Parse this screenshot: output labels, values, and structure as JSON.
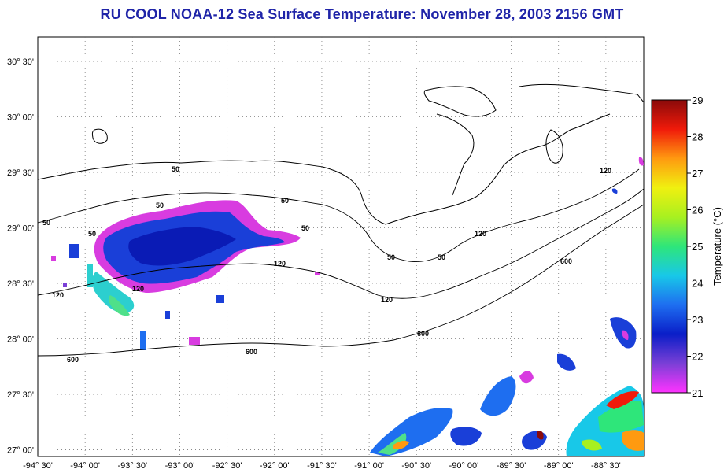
{
  "title": "RU COOL  NOAA-12  Sea Surface Temperature:  November 28, 2003 2156 GMT",
  "map": {
    "lon_ticks": [
      "-94° 30'",
      "-94° 00'",
      "-93° 30'",
      "-93° 00'",
      "-92° 30'",
      "-92° 00'",
      "-91° 30'",
      "-91° 00'",
      "-90° 30'",
      "-90° 00'",
      "-89° 30'",
      "-89° 00'",
      "-88° 30'"
    ],
    "lat_ticks": [
      "30° 30'",
      "30° 00'",
      "29° 30'",
      "29° 00'",
      "28° 30'",
      "28° 00'",
      "27° 30'",
      "27° 00'"
    ],
    "lon_values": [
      -94.5,
      -94.0,
      -93.5,
      -93.0,
      -92.5,
      -92.0,
      -91.5,
      -91.0,
      -90.5,
      -90.0,
      -89.5,
      -89.0,
      -88.5
    ],
    "lat_values": [
      30.5,
      30.0,
      29.5,
      29.0,
      28.5,
      28.0,
      27.5,
      27.0
    ],
    "isobath_labels": [
      "50",
      "50",
      "50",
      "50",
      "50",
      "50",
      "50",
      "50",
      "120",
      "120",
      "120",
      "120",
      "120",
      "120",
      "600",
      "600",
      "600",
      "600"
    ]
  },
  "colorbar": {
    "label": "Temperature (°C)",
    "min": 21,
    "max": 29,
    "ticks": [
      "29",
      "28",
      "27",
      "26",
      "25",
      "24",
      "23",
      "22",
      "21"
    ],
    "colors": [
      "#ff33ff",
      "#7a3fd6",
      "#0a1ec8",
      "#1e6ef0",
      "#18c8e8",
      "#2ee67a",
      "#a8f020",
      "#f0f010",
      "#ff9a10",
      "#f01a0a",
      "#8a0a0a"
    ]
  }
}
